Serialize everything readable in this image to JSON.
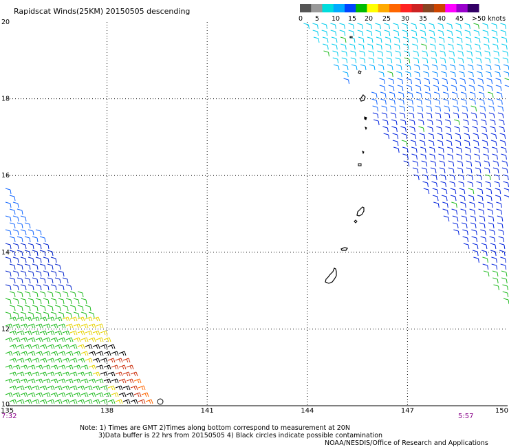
{
  "header": {
    "title": "Rapidscat Winds(25KM) 20150505 descending"
  },
  "legend": {
    "labels": [
      "0",
      "5",
      "10",
      "15",
      "20",
      "25",
      "30",
      "35",
      "40",
      "45",
      ">50 knots"
    ],
    "colors": [
      "#555555",
      "#999999",
      "#00dddd",
      "#00aaff",
      "#0044ff",
      "#00bb00",
      "#ffff00",
      "#ffaa00",
      "#ff6600",
      "#ff2222",
      "#cc2222",
      "#884422",
      "#cc4400",
      "#ff00ff",
      "#9900cc",
      "#330066"
    ]
  },
  "map": {
    "lon_ticks": [
      "135",
      "138",
      "141",
      "144",
      "147",
      "150"
    ],
    "lat_ticks": [
      "20",
      "18",
      "16",
      "14",
      "12",
      "10"
    ],
    "lon_range": [
      135,
      150
    ],
    "lat_range": [
      10,
      20
    ],
    "times": {
      "left": "7:32",
      "right": "5:57"
    },
    "time_color": "#880088"
  },
  "footer": {
    "note_line1": "Note: 1) Times are GMT 2)Times along bottom correspond to measurement at 20N",
    "note_line2": "3)Data buffer is 22 hrs from 20150505 4) Black circles indicate possible contamination",
    "credit": "NOAA/NESDIS/Office of Research and Applications"
  }
}
